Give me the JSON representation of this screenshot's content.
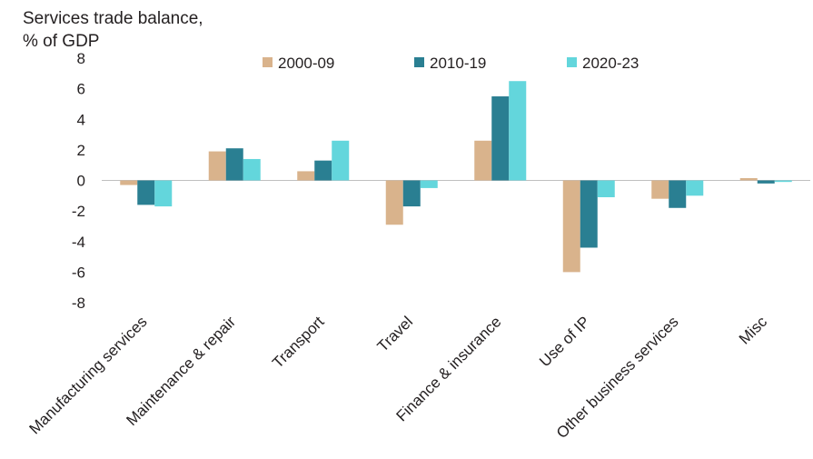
{
  "chart_data": {
    "type": "bar",
    "ylabel_lines": [
      "Services trade balance,",
      "% of GDP"
    ],
    "categories": [
      "Manufacturing services",
      "Maintenance & repair",
      "Transport",
      "Travel",
      "Finance & insurance",
      "Use of IP",
      "Other business services",
      "Misc"
    ],
    "series": [
      {
        "name": "2000-09",
        "color": "#d9b38c",
        "values": [
          -0.3,
          1.9,
          0.6,
          -2.9,
          2.6,
          -6.0,
          -1.2,
          0.15
        ]
      },
      {
        "name": "2010-19",
        "color": "#2a7f92",
        "values": [
          -1.6,
          2.1,
          1.3,
          -1.7,
          5.5,
          -4.4,
          -1.8,
          -0.2
        ]
      },
      {
        "name": "2020-23",
        "color": "#63d6dc",
        "values": [
          -1.7,
          1.4,
          2.6,
          -0.5,
          6.5,
          -1.1,
          -1.0,
          -0.1
        ]
      }
    ],
    "ylim": [
      -8,
      8
    ],
    "yticks": [
      8,
      6,
      4,
      2,
      0,
      -2,
      -4,
      -6,
      -8
    ],
    "grid": false,
    "legend_position": "top-center",
    "zero_line_color": "#bfbfbf"
  }
}
